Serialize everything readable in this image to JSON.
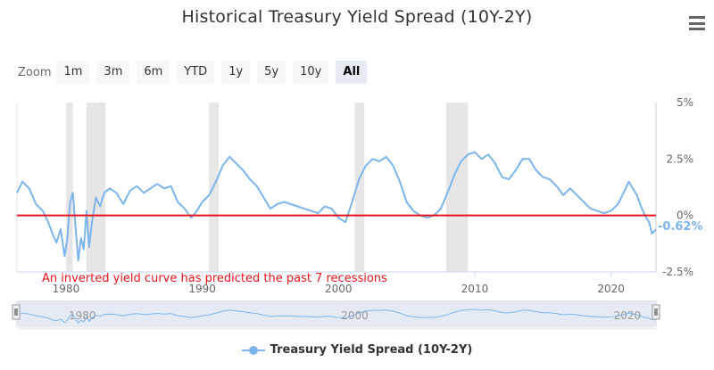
{
  "title": "Historical Treasury Yield Spread (10Y-2Y)",
  "menu_icon": "hamburger-menu-icon",
  "zoom": {
    "label": "Zoom",
    "buttons": [
      "1m",
      "3m",
      "6m",
      "YTD",
      "1y",
      "5y",
      "10y",
      "All"
    ],
    "active": "All"
  },
  "colors": {
    "series": "#7cb5ec",
    "zero_line": "#e8141b",
    "recession_band": "#e6e6e6",
    "annotation": "#e8141b",
    "navigator_fill": "#dde6f3"
  },
  "annotation_text": "An inverted yield curve has predicted the past 7 recessions",
  "current_value_label": "-0.62%",
  "navigator": {
    "tick_labels": [
      "1980",
      "2000",
      "2020"
    ]
  },
  "chart_data": {
    "type": "line",
    "title": "Historical Treasury Yield Spread (10Y-2Y)",
    "xlabel": "",
    "ylabel": "",
    "xlim": [
      1976.4,
      2023.3
    ],
    "ylim": [
      -2.5,
      5
    ],
    "y_ticks": [
      "5%",
      "2.5%",
      "0%",
      "-2.5%"
    ],
    "y_tick_values": [
      5,
      2.5,
      0,
      -2.5
    ],
    "x_ticks": [
      "1980",
      "1990",
      "2000",
      "2010",
      "2020"
    ],
    "x_tick_values": [
      1980,
      1990,
      2000,
      2010,
      2020
    ],
    "grid": false,
    "legend_position": "bottom-center",
    "reference_line": {
      "y": 0,
      "label": ""
    },
    "recession_bands": [
      [
        1980.0,
        1980.5
      ],
      [
        1981.5,
        1982.9
      ],
      [
        1990.5,
        1991.2
      ],
      [
        2001.2,
        2001.9
      ],
      [
        2007.9,
        2009.5
      ]
    ],
    "series": [
      {
        "name": "Treasury Yield Spread (10Y-2Y)",
        "x": [
          1976.4,
          1976.8,
          1977.3,
          1977.8,
          1978.3,
          1978.7,
          1979.0,
          1979.3,
          1979.6,
          1979.9,
          1980.1,
          1980.3,
          1980.5,
          1980.7,
          1980.9,
          1981.1,
          1981.3,
          1981.5,
          1981.7,
          1981.9,
          1982.2,
          1982.5,
          1982.8,
          1983.2,
          1983.7,
          1984.2,
          1984.7,
          1985.2,
          1985.7,
          1986.2,
          1986.7,
          1987.2,
          1987.7,
          1988.2,
          1988.7,
          1989.2,
          1989.6,
          1990.0,
          1990.5,
          1991.0,
          1991.5,
          1992.0,
          1992.5,
          1993.0,
          1993.5,
          1994.0,
          1994.5,
          1995.0,
          1995.5,
          1996.0,
          1996.5,
          1997.0,
          1997.5,
          1998.0,
          1998.5,
          1999.0,
          1999.5,
          2000.0,
          2000.5,
          2001.0,
          2001.5,
          2002.0,
          2002.5,
          2003.0,
          2003.5,
          2004.0,
          2004.5,
          2005.0,
          2005.5,
          2006.0,
          2006.5,
          2007.0,
          2007.5,
          2008.0,
          2008.5,
          2009.0,
          2009.5,
          2010.0,
          2010.5,
          2011.0,
          2011.5,
          2012.0,
          2012.5,
          2013.0,
          2013.5,
          2014.0,
          2014.5,
          2015.0,
          2015.5,
          2016.0,
          2016.5,
          2017.0,
          2017.5,
          2018.0,
          2018.5,
          2019.0,
          2019.5,
          2020.0,
          2020.5,
          2021.0,
          2021.3,
          2021.6,
          2021.9,
          2022.2,
          2022.5,
          2022.8,
          2023.0,
          2023.3
        ],
        "values": [
          1.0,
          1.5,
          1.2,
          0.5,
          0.2,
          -0.3,
          -0.8,
          -1.2,
          -0.6,
          -1.8,
          -1.0,
          0.6,
          1.0,
          -0.5,
          -2.0,
          -1.0,
          -1.5,
          0.2,
          -1.4,
          -0.3,
          0.8,
          0.4,
          1.0,
          1.2,
          1.0,
          0.5,
          1.1,
          1.3,
          1.0,
          1.2,
          1.4,
          1.2,
          1.3,
          0.6,
          0.3,
          -0.1,
          0.2,
          0.6,
          0.9,
          1.5,
          2.2,
          2.6,
          2.3,
          2.0,
          1.6,
          1.3,
          0.8,
          0.3,
          0.5,
          0.6,
          0.5,
          0.4,
          0.3,
          0.2,
          0.1,
          0.4,
          0.3,
          -0.1,
          -0.3,
          0.6,
          1.6,
          2.2,
          2.5,
          2.4,
          2.6,
          2.2,
          1.5,
          0.6,
          0.2,
          0.0,
          -0.1,
          0.0,
          0.3,
          1.0,
          1.8,
          2.4,
          2.7,
          2.8,
          2.5,
          2.7,
          2.3,
          1.7,
          1.6,
          2.0,
          2.5,
          2.5,
          2.0,
          1.7,
          1.6,
          1.3,
          0.9,
          1.2,
          0.9,
          0.6,
          0.3,
          0.2,
          0.1,
          0.2,
          0.5,
          1.1,
          1.5,
          1.2,
          0.9,
          0.4,
          0.0,
          -0.3,
          -0.8,
          -0.62
        ]
      }
    ]
  }
}
